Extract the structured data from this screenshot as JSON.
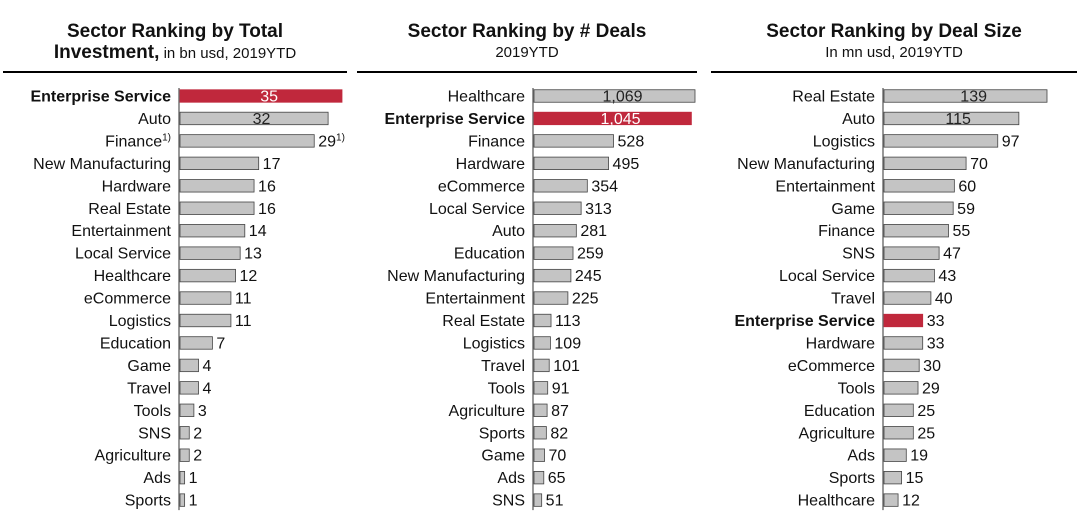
{
  "colors": {
    "bar": "#c4c4c4",
    "bar_stroke": "#444444",
    "highlight": "#c0283c",
    "axis": "#555555"
  },
  "chart_data": [
    {
      "type": "bar",
      "orientation": "horizontal",
      "title": "Sector Ranking by Total",
      "title_line2_bold": "Investment,",
      "subtitle": "in bn usd, 2019YTD",
      "highlight": "Enterprise Service",
      "categories": [
        "Enterprise Service",
        "Auto",
        "Finance",
        "New Manufacturing",
        "Hardware",
        "Real Estate",
        "Entertainment",
        "Local Service",
        "Healthcare",
        "eCommerce",
        "Logistics",
        "Education",
        "Game",
        "Travel",
        "Tools",
        "SNS",
        "Agriculture",
        "Ads",
        "Sports"
      ],
      "category_notes": {
        "Finance": "1)"
      },
      "values": [
        35,
        32,
        29,
        17,
        16,
        16,
        14,
        13,
        12,
        11,
        11,
        7,
        4,
        4,
        3,
        2,
        2,
        1,
        1
      ],
      "value_notes": {
        "Finance": "1)"
      },
      "xlim": [
        0,
        35
      ]
    },
    {
      "type": "bar",
      "orientation": "horizontal",
      "title": "Sector Ranking by # Deals",
      "subtitle": "2019YTD",
      "highlight": "Enterprise Service",
      "categories": [
        "Healthcare",
        "Enterprise Service",
        "Finance",
        "Hardware",
        "eCommerce",
        "Local Service",
        "Auto",
        "Education",
        "New Manufacturing",
        "Entertainment",
        "Real Estate",
        "Logistics",
        "Travel",
        "Tools",
        "Agriculture",
        "Sports",
        "Game",
        "Ads",
        "SNS"
      ],
      "values": [
        1069,
        1045,
        528,
        495,
        354,
        313,
        281,
        259,
        245,
        225,
        113,
        109,
        101,
        91,
        87,
        82,
        70,
        65,
        51
      ],
      "value_labels": [
        "1,069",
        "1,045",
        "528",
        "495",
        "354",
        "313",
        "281",
        "259",
        "245",
        "225",
        "113",
        "109",
        "101",
        "91",
        "87",
        "82",
        "70",
        "65",
        "51"
      ],
      "xlim": [
        0,
        1069
      ]
    },
    {
      "type": "bar",
      "orientation": "horizontal",
      "title": "Sector Ranking by Deal Size",
      "subtitle": "In mn usd, 2019YTD",
      "highlight": "Enterprise Service",
      "categories": [
        "Real Estate",
        "Auto",
        "Logistics",
        "New Manufacturing",
        "Entertainment",
        "Game",
        "Finance",
        "SNS",
        "Local Service",
        "Travel",
        "Enterprise Service",
        "Hardware",
        "eCommerce",
        "Tools",
        "Education",
        "Agriculture",
        "Ads",
        "Sports",
        "Healthcare"
      ],
      "values": [
        139,
        115,
        97,
        70,
        60,
        59,
        55,
        47,
        43,
        40,
        33,
        33,
        30,
        29,
        25,
        25,
        19,
        15,
        12
      ],
      "xlim": [
        0,
        139
      ]
    }
  ]
}
